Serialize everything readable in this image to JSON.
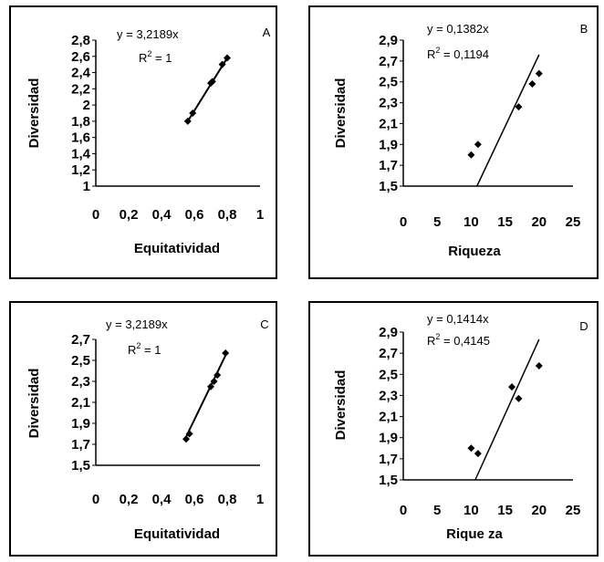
{
  "chart_data": [
    {
      "id": "A",
      "type": "scatter",
      "letter": "A",
      "equation": "y = 3,2189x",
      "r2_label": "R",
      "r2_value": " = 1",
      "xlabel": "Equitatividad",
      "ylabel": "Diversidad",
      "xlim": [
        0,
        1
      ],
      "ylim": [
        1,
        2.8
      ],
      "xticks": [
        "0",
        "0,2",
        "0,4",
        "0,6",
        "0,8",
        "1"
      ],
      "yticks": [
        "1",
        "1,2",
        "1,4",
        "1,6",
        "1,8",
        "2",
        "2,2",
        "2,4",
        "2,6",
        "2,8"
      ],
      "points": [
        [
          0.56,
          1.8
        ],
        [
          0.59,
          1.9
        ],
        [
          0.7,
          2.27
        ],
        [
          0.71,
          2.29
        ],
        [
          0.77,
          2.5
        ],
        [
          0.8,
          2.58
        ]
      ],
      "trendline": [
        [
          0.56,
          1.8
        ],
        [
          0.8,
          2.58
        ]
      ],
      "grid": false
    },
    {
      "id": "B",
      "type": "scatter",
      "letter": "B",
      "equation": "y = 0,1382x",
      "r2_label": "R",
      "r2_value": " = 0,1194",
      "xlabel": "Riqueza",
      "ylabel": "Diversidad",
      "xlim": [
        0,
        25
      ],
      "ylim": [
        1.5,
        2.9
      ],
      "xticks": [
        "0",
        "5",
        "10",
        "15",
        "20",
        "25"
      ],
      "yticks": [
        "1,5",
        "1,7",
        "1,9",
        "2,1",
        "2,3",
        "2,5",
        "2,7",
        "2,9"
      ],
      "points": [
        [
          10,
          1.8
        ],
        [
          11,
          1.9
        ],
        [
          17,
          2.26
        ],
        [
          19,
          2.48
        ],
        [
          20,
          2.58
        ]
      ],
      "trendline": [
        [
          10.85,
          1.5
        ],
        [
          20,
          2.76
        ]
      ],
      "grid": false
    },
    {
      "id": "C",
      "type": "scatter",
      "letter": "C",
      "equation": "y = 3,2189x",
      "r2_label": "R",
      "r2_value": " = 1",
      "xlabel": "Equitatividad",
      "ylabel": "Diversidad",
      "xlim": [
        0,
        1
      ],
      "ylim": [
        1.5,
        2.7
      ],
      "xticks": [
        "0",
        "0,2",
        "0,4",
        "0,6",
        "0,8",
        "1"
      ],
      "yticks": [
        "1,5",
        "1,7",
        "1,9",
        "2,1",
        "2,3",
        "2,5",
        "2,7"
      ],
      "points": [
        [
          0.55,
          1.75
        ],
        [
          0.57,
          1.8
        ],
        [
          0.7,
          2.25
        ],
        [
          0.72,
          2.3
        ],
        [
          0.74,
          2.36
        ],
        [
          0.79,
          2.57
        ]
      ],
      "trendline": [
        [
          0.54,
          1.74
        ],
        [
          0.8,
          2.58
        ]
      ],
      "grid": false
    },
    {
      "id": "D",
      "type": "scatter",
      "letter": "D",
      "equation": "y = 0,1414x",
      "r2_label": "R",
      "r2_value": " = 0,4145",
      "xlabel": "Rique za",
      "ylabel": "Diversidad",
      "xlim": [
        0,
        25
      ],
      "ylim": [
        1.5,
        2.9
      ],
      "xticks": [
        "0",
        "5",
        "10",
        "15",
        "20",
        "25"
      ],
      "yticks": [
        "1,5",
        "1,7",
        "1,9",
        "2,1",
        "2,3",
        "2,5",
        "2,7",
        "2,9"
      ],
      "points": [
        [
          10,
          1.8
        ],
        [
          11,
          1.75
        ],
        [
          16,
          2.38
        ],
        [
          17,
          2.27
        ],
        [
          20,
          2.58
        ]
      ],
      "trendline": [
        [
          10.6,
          1.5
        ],
        [
          20,
          2.83
        ]
      ],
      "grid": false
    }
  ]
}
